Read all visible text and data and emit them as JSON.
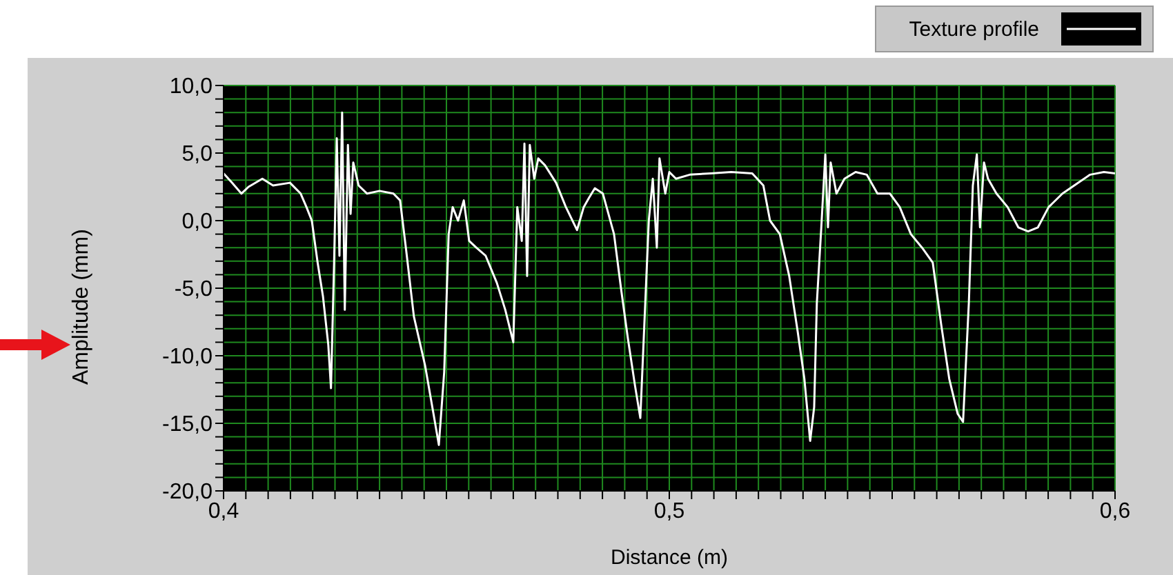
{
  "chart_data": {
    "type": "line",
    "xlabel": "Distance (m)",
    "ylabel": "Amplitude (mm)",
    "legend": "top right",
    "grid": true,
    "marker": "none",
    "line_style": "solid",
    "xlim": [
      0.4,
      0.6
    ],
    "ylim": [
      -20,
      10
    ],
    "xticks": [
      {
        "value": 0.4,
        "label": "0,4"
      },
      {
        "value": 0.405,
        "label": null
      },
      {
        "value": 0.41,
        "label": null
      },
      {
        "value": 0.415,
        "label": null
      },
      {
        "value": 0.42,
        "label": null
      },
      {
        "value": 0.425,
        "label": null
      },
      {
        "value": 0.43,
        "label": null
      },
      {
        "value": 0.435,
        "label": null
      },
      {
        "value": 0.44,
        "label": null
      },
      {
        "value": 0.445,
        "label": null
      },
      {
        "value": 0.45,
        "label": null
      },
      {
        "value": 0.455,
        "label": null
      },
      {
        "value": 0.46,
        "label": null
      },
      {
        "value": 0.465,
        "label": null
      },
      {
        "value": 0.47,
        "label": null
      },
      {
        "value": 0.475,
        "label": null
      },
      {
        "value": 0.48,
        "label": null
      },
      {
        "value": 0.485,
        "label": null
      },
      {
        "value": 0.49,
        "label": null
      },
      {
        "value": 0.495,
        "label": null
      },
      {
        "value": 0.5,
        "label": "0,5"
      },
      {
        "value": 0.505,
        "label": null
      },
      {
        "value": 0.51,
        "label": null
      },
      {
        "value": 0.515,
        "label": null
      },
      {
        "value": 0.52,
        "label": null
      },
      {
        "value": 0.525,
        "label": null
      },
      {
        "value": 0.53,
        "label": null
      },
      {
        "value": 0.535,
        "label": null
      },
      {
        "value": 0.54,
        "label": null
      },
      {
        "value": 0.545,
        "label": null
      },
      {
        "value": 0.55,
        "label": null
      },
      {
        "value": 0.555,
        "label": null
      },
      {
        "value": 0.56,
        "label": null
      },
      {
        "value": 0.565,
        "label": null
      },
      {
        "value": 0.57,
        "label": null
      },
      {
        "value": 0.575,
        "label": null
      },
      {
        "value": 0.58,
        "label": null
      },
      {
        "value": 0.585,
        "label": null
      },
      {
        "value": 0.59,
        "label": null
      },
      {
        "value": 0.595,
        "label": null
      },
      {
        "value": 0.6,
        "label": "0,6"
      }
    ],
    "yticks": [
      {
        "value": -20,
        "label": "-20,0"
      },
      {
        "value": -19,
        "label": null
      },
      {
        "value": -18,
        "label": null
      },
      {
        "value": -17,
        "label": null
      },
      {
        "value": -16,
        "label": null
      },
      {
        "value": -15,
        "label": "-15,0"
      },
      {
        "value": -14,
        "label": null
      },
      {
        "value": -13,
        "label": null
      },
      {
        "value": -12,
        "label": null
      },
      {
        "value": -11,
        "label": null
      },
      {
        "value": -10,
        "label": "-10,0"
      },
      {
        "value": -9,
        "label": null
      },
      {
        "value": -8,
        "label": null
      },
      {
        "value": -7,
        "label": null
      },
      {
        "value": -6,
        "label": null
      },
      {
        "value": -5,
        "label": "-5,0"
      },
      {
        "value": -4,
        "label": null
      },
      {
        "value": -3,
        "label": null
      },
      {
        "value": -2,
        "label": null
      },
      {
        "value": -1,
        "label": null
      },
      {
        "value": 0,
        "label": "0,0"
      },
      {
        "value": 1,
        "label": null
      },
      {
        "value": 2,
        "label": null
      },
      {
        "value": 3,
        "label": null
      },
      {
        "value": 4,
        "label": null
      },
      {
        "value": 5,
        "label": "5,0"
      },
      {
        "value": 6,
        "label": null
      },
      {
        "value": 7,
        "label": null
      },
      {
        "value": 8,
        "label": null
      },
      {
        "value": 9,
        "label": null
      },
      {
        "value": 10,
        "label": "10,0"
      }
    ],
    "series": [
      {
        "name": "Texture profile",
        "color": "#ffffff",
        "x": [
          0.4,
          0.4019,
          0.404,
          0.4056,
          0.4087,
          0.4111,
          0.4149,
          0.4173,
          0.4186,
          0.4198,
          0.4211,
          0.4223,
          0.4235,
          0.4241,
          0.4248,
          0.4254,
          0.426,
          0.4266,
          0.4272,
          0.4279,
          0.4285,
          0.4291,
          0.4303,
          0.4322,
          0.435,
          0.4381,
          0.4396,
          0.4409,
          0.4427,
          0.4452,
          0.4471,
          0.4483,
          0.4495,
          0.4505,
          0.4514,
          0.4526,
          0.4539,
          0.4551,
          0.4567,
          0.4588,
          0.4613,
          0.4632,
          0.465,
          0.4659,
          0.4669,
          0.4675,
          0.4681,
          0.4687,
          0.4697,
          0.4706,
          0.4721,
          0.4746,
          0.4768,
          0.4793,
          0.4808,
          0.482,
          0.4833,
          0.4851,
          0.4876,
          0.4892,
          0.4907,
          0.4923,
          0.4935,
          0.4944,
          0.4954,
          0.4963,
          0.4972,
          0.4978,
          0.4991,
          0.5,
          0.5015,
          0.5046,
          0.5093,
          0.5139,
          0.5186,
          0.5211,
          0.5226,
          0.5248,
          0.5269,
          0.5288,
          0.5303,
          0.5316,
          0.5325,
          0.5331,
          0.5341,
          0.535,
          0.5356,
          0.5362,
          0.5375,
          0.5393,
          0.5418,
          0.5443,
          0.5467,
          0.5495,
          0.5517,
          0.5542,
          0.5567,
          0.5591,
          0.561,
          0.5628,
          0.5647,
          0.5659,
          0.5672,
          0.5681,
          0.569,
          0.5697,
          0.5706,
          0.5715,
          0.5734,
          0.5759,
          0.5783,
          0.5805,
          0.5827,
          0.5851,
          0.5882,
          0.5913,
          0.5944,
          0.5975,
          0.6
        ],
        "values": [
          3.5,
          2.8,
          2.0,
          2.5,
          3.1,
          2.6,
          2.8,
          2.0,
          1.0,
          0.0,
          -3.1,
          -5.6,
          -9.2,
          -12.4,
          -3.1,
          6.1,
          -2.6,
          8.0,
          -6.6,
          5.6,
          0.5,
          4.3,
          2.6,
          2.0,
          2.2,
          2.0,
          1.5,
          -2.0,
          -7.1,
          -10.7,
          -14.3,
          -16.6,
          -11.2,
          -1.0,
          1.0,
          0.0,
          1.5,
          -1.5,
          -2.0,
          -2.6,
          -4.6,
          -6.6,
          -9.0,
          1.0,
          -1.5,
          5.7,
          -4.1,
          5.6,
          3.1,
          4.6,
          4.1,
          2.8,
          1.0,
          -0.7,
          1.0,
          1.7,
          2.4,
          2.0,
          -1.0,
          -5.1,
          -8.7,
          -12.2,
          -14.6,
          -7.7,
          0.0,
          3.1,
          -2.0,
          4.6,
          2.0,
          3.6,
          3.1,
          3.4,
          3.5,
          3.6,
          3.5,
          2.6,
          0.0,
          -1.0,
          -4.1,
          -8.2,
          -11.7,
          -16.3,
          -13.8,
          -6.1,
          -0.5,
          4.9,
          -0.5,
          4.3,
          2.0,
          3.1,
          3.6,
          3.4,
          2.0,
          2.0,
          1.0,
          -1.0,
          -2.0,
          -3.1,
          -7.7,
          -11.7,
          -14.3,
          -14.9,
          -6.1,
          2.6,
          4.9,
          -0.5,
          4.3,
          3.1,
          2.0,
          1.0,
          -0.5,
          -0.8,
          -0.5,
          1.0,
          2.0,
          2.7,
          3.4,
          3.6,
          3.5
        ]
      }
    ]
  }
}
